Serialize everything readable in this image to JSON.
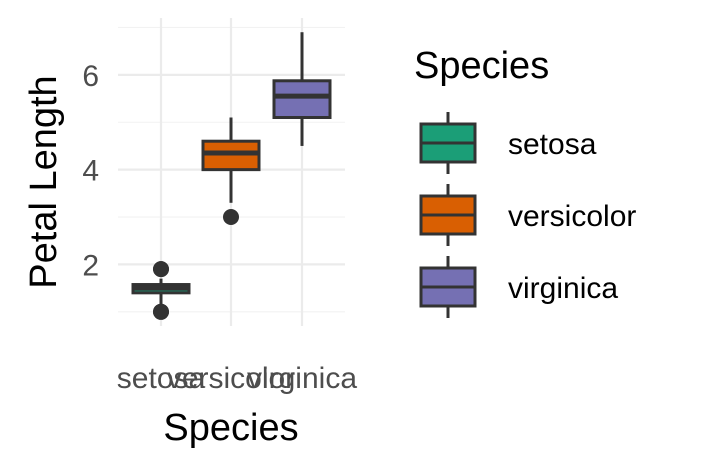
{
  "chart_data": {
    "type": "box",
    "xlabel": "Species",
    "ylabel": "Petal Length",
    "categories": [
      "setosa",
      "versicolor",
      "virginica"
    ],
    "ylim": [
      0.7,
      7.2
    ],
    "yticks": [
      2,
      4,
      6
    ],
    "grid": true,
    "legend": {
      "title": "Species",
      "placement": "right",
      "items": [
        {
          "label": "setosa",
          "color": "#1b9e77"
        },
        {
          "label": "versicolor",
          "color": "#d95f02"
        },
        {
          "label": "virginica",
          "color": "#7570b3"
        }
      ]
    },
    "series": [
      {
        "category": "setosa",
        "color": "#1b9e77",
        "whisker_low": 1.1,
        "q1": 1.4,
        "median": 1.5,
        "q3": 1.575,
        "whisker_high": 1.7,
        "outliers": [
          1.0,
          1.0,
          1.9,
          1.9
        ]
      },
      {
        "category": "versicolor",
        "color": "#d95f02",
        "whisker_low": 3.3,
        "q1": 4.0,
        "median": 4.35,
        "q3": 4.6,
        "whisker_high": 5.1,
        "outliers": [
          3.0
        ]
      },
      {
        "category": "virginica",
        "color": "#7570b3",
        "whisker_low": 4.5,
        "q1": 5.1,
        "median": 5.55,
        "q3": 5.875,
        "whisker_high": 6.9,
        "outliers": []
      }
    ]
  }
}
